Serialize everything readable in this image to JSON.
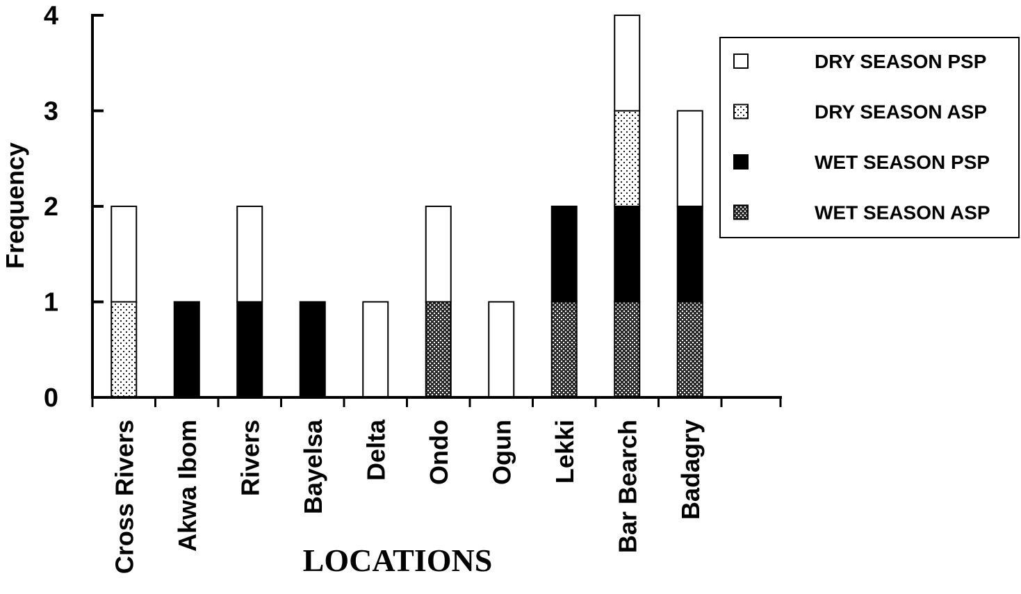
{
  "chart_data": {
    "type": "bar",
    "stacked": true,
    "title": "",
    "xlabel": "LOCATIONS",
    "ylabel": "Frequency",
    "ylim": [
      0,
      4
    ],
    "yticks": [
      "0",
      "1",
      "2",
      "3",
      "4"
    ],
    "grid": false,
    "legend_position": "top-right",
    "categories": [
      "Cross Rivers",
      "Akwa Ibom",
      "Rivers",
      "Bayelsa",
      "Delta",
      "Ondo",
      "Ogun",
      "Lekki",
      "Bar Bearch",
      "Badagry"
    ],
    "series": [
      {
        "name": "WET SEASON ASP",
        "pattern": "crosshatch",
        "values": [
          0,
          0,
          0,
          0,
          0,
          1,
          0,
          1,
          1,
          1
        ]
      },
      {
        "name": "WET SEASON PSP",
        "pattern": "solid-black",
        "values": [
          0,
          1,
          1,
          1,
          0,
          0,
          0,
          1,
          1,
          1
        ]
      },
      {
        "name": "DRY SEASON ASP",
        "pattern": "dotted",
        "values": [
          1,
          0,
          0,
          0,
          0,
          0,
          0,
          0,
          1,
          0
        ]
      },
      {
        "name": "DRY SEASON PSP",
        "pattern": "white",
        "values": [
          1,
          0,
          1,
          0,
          1,
          1,
          1,
          0,
          1,
          1
        ]
      }
    ],
    "legend_order": [
      "DRY SEASON PSP",
      "DRY SEASON ASP",
      "WET SEASON PSP",
      "WET SEASON ASP"
    ]
  }
}
